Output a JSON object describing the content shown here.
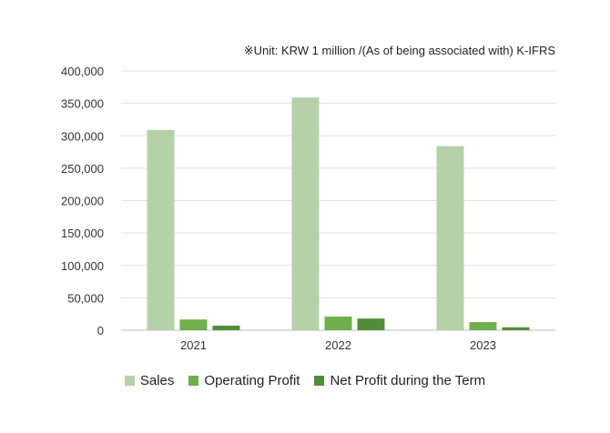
{
  "chart_data": {
    "type": "bar",
    "annotation": "※Unit: KRW 1 million /(As of being associated with) K-IFRS",
    "categories": [
      "2021",
      "2022",
      "2023"
    ],
    "series": [
      {
        "name": "Sales",
        "values": [
          309000,
          359000,
          284000
        ],
        "color": "#b5d1a8"
      },
      {
        "name": "Operating Profit",
        "values": [
          16500,
          21000,
          12500
        ],
        "color": "#6fb04b"
      },
      {
        "name": "Net Profit during the Term",
        "values": [
          7000,
          18000,
          4500
        ],
        "color": "#4f8f3a"
      }
    ],
    "y_ticks": [
      "0",
      "50,000",
      "100,000",
      "150,000",
      "200,000",
      "250,000",
      "300,000",
      "350,000",
      "400,000"
    ],
    "ylim": [
      0,
      400000
    ],
    "grid": true,
    "legend_position": "bottom"
  }
}
